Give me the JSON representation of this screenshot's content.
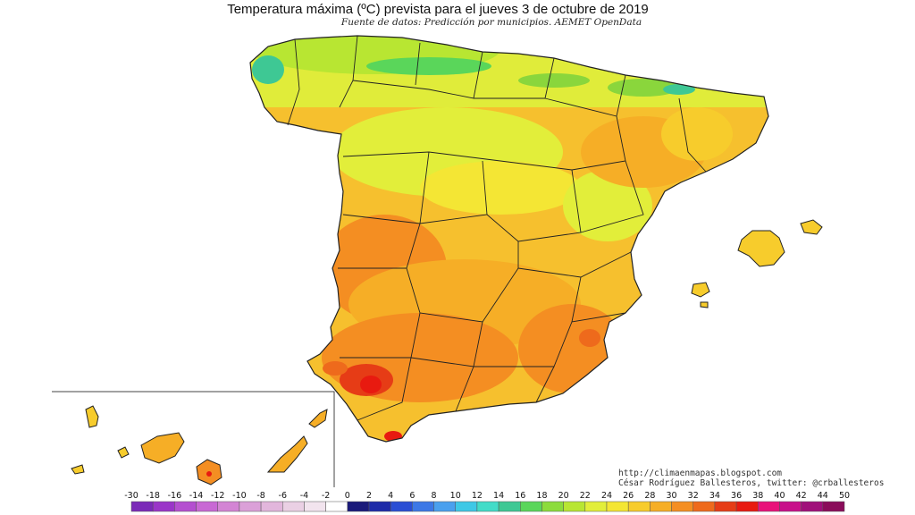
{
  "title": "Temperatura máxima (ºC) prevista para el jueves 3 de octubre de 2019",
  "subtitle": "Fuente de datos: Predicción por municipios. AEMET OpenData",
  "credits": {
    "site": "http://climaenmapas.blogspot.com",
    "author": "César Rodríguez Ballesteros, twitter: @crballesteros"
  },
  "legend": {
    "labels": [
      "-30",
      "-18",
      "-16",
      "-14",
      "-12",
      "-10",
      "-8",
      "-6",
      "-4",
      "-2",
      "0",
      "2",
      "4",
      "6",
      "8",
      "10",
      "12",
      "14",
      "16",
      "18",
      "20",
      "22",
      "24",
      "26",
      "28",
      "30",
      "32",
      "34",
      "36",
      "38",
      "40",
      "42",
      "44",
      "50"
    ],
    "colors": [
      "#7b2ab8",
      "#9a35c8",
      "#b44fd0",
      "#c868d4",
      "#d384d4",
      "#dba0d8",
      "#e2b6dc",
      "#ead0e4",
      "#f2e4ee",
      "#ffffff",
      "#1a1a7a",
      "#1d2aa8",
      "#2a4ed4",
      "#3c78e6",
      "#4aa0ee",
      "#3ec8e6",
      "#42dcc8",
      "#3ec894",
      "#5ad65a",
      "#8cdc3c",
      "#b8e632",
      "#e2ee3a",
      "#f4e634",
      "#f7cc2c",
      "#f6ae26",
      "#f48e22",
      "#ee6a1c",
      "#e63c16",
      "#e81a10",
      "#e8127a",
      "#c8108a",
      "#a0107a",
      "#8a0c5a"
    ]
  },
  "map": {
    "region": "Spain",
    "colors": {
      "hot": "#e8401a",
      "warm": "#f2a22c",
      "mild": "#f6c02e",
      "cool": "#e0ec3a",
      "fresh": "#8ad63c",
      "cold": "#3ec894",
      "border": "#222222"
    }
  }
}
